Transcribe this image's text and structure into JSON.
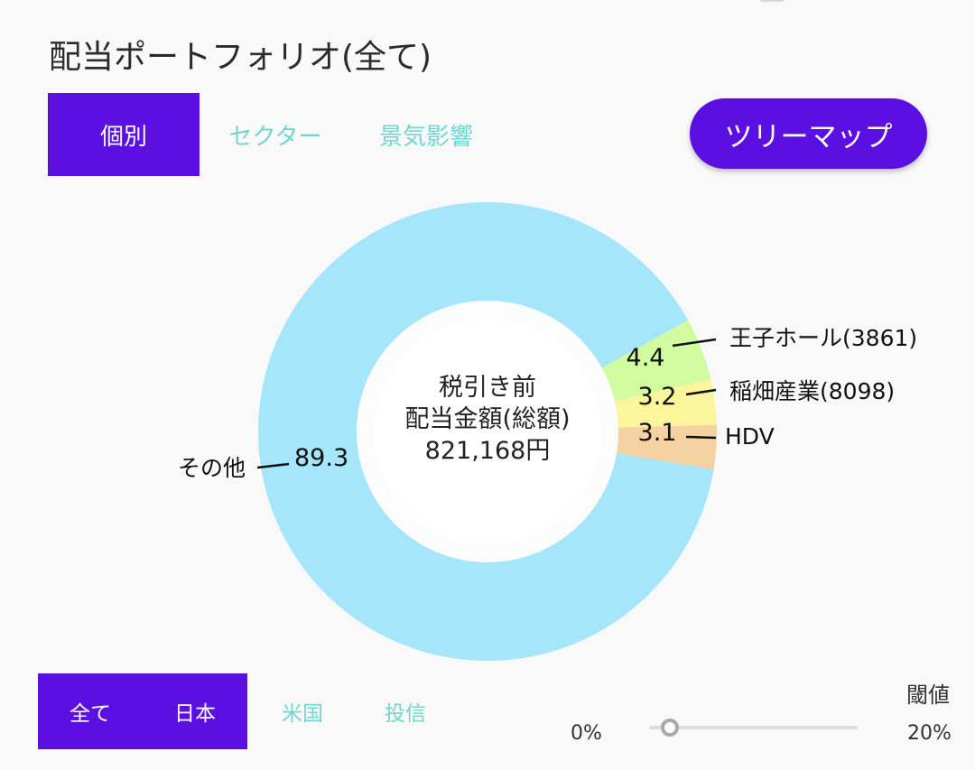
{
  "title": "配当ポートフォリオ(全て)",
  "view_tabs": [
    {
      "label": "個別",
      "active": true
    },
    {
      "label": "セクター",
      "active": false
    },
    {
      "label": "景気影響",
      "active": false
    }
  ],
  "treemap_button": "ツリーマップ",
  "center_label": {
    "line1": "税引き前",
    "line2": "配当金額(総額)",
    "amount": "821,168円"
  },
  "chart_data": {
    "type": "pie",
    "categories": [
      "その他",
      "王子ホール(3861)",
      "稲畑産業(8098)",
      "HDV"
    ],
    "values": [
      89.3,
      4.4,
      3.2,
      3.1
    ],
    "value_labels": [
      "89.3",
      "4.4",
      "3.2",
      "3.1"
    ],
    "colors": [
      "#a5e6fa",
      "#d2fba0",
      "#fbf59c",
      "#f4d2a1"
    ]
  },
  "region_tabs": [
    {
      "label": "全て",
      "active": true
    },
    {
      "label": "日本",
      "active": true
    },
    {
      "label": "米国",
      "active": false
    },
    {
      "label": "投信",
      "active": false
    }
  ],
  "threshold": {
    "label": "閾値",
    "min_label": "0%",
    "max_label": "20%",
    "value_fraction": 0.1
  },
  "colors": {
    "accent": "#5b0fe0",
    "inactive_tab": "#6fd7cf"
  }
}
